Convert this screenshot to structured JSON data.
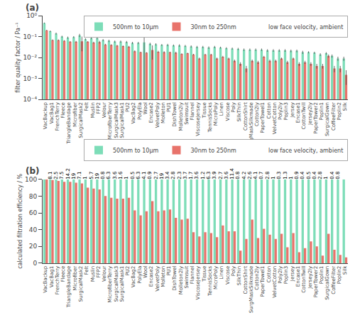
{
  "chart_data": [
    {
      "type": "bar",
      "title": "(a)",
      "categories": [
        "VacBackup",
        "VacBag1",
        "FrenchTerry",
        "Fleece",
        "TriangleBandage",
        "Microfiber",
        "SurgicalMask2",
        "Felt",
        "Muslin",
        "FFP2",
        "Velour",
        "MicrofiberTerry",
        "SurgicalMask3",
        "SurgicalMask1",
        "PU2",
        "VacBag2",
        "PolyEla",
        "Wool",
        "Encase2",
        "VelvetPoly",
        "Molleton",
        "PU1",
        "DishTowel",
        "Molleton2ly",
        "Swimsuit",
        "Flannel",
        "ViscoseJersey",
        "Tissue",
        "TennisSocks",
        "MicroPoly",
        "Linen",
        "Viscose",
        "Poly",
        "SilkThin",
        "CottonShirt",
        "SurgMaskSilkmade",
        "Cotton2ly",
        "PaperTowel1",
        "Cotton",
        "VelvetCotton",
        "Poly2ly",
        "Poplin3",
        "Jersey",
        "Encase1",
        "CottonTwill",
        "Jersey2ly",
        "PaperTower2",
        "Poplin1",
        "SurgicalGown",
        "CoffeeFilter",
        "Poplin2",
        "Silk"
      ],
      "ylabel": "filter quality factor / Pa⁻¹",
      "log": "y",
      "ylim": [
        0.0001,
        1
      ],
      "yticks": [
        {
          "value": 0.0001,
          "label": "10⁻⁴"
        },
        {
          "value": 0.001,
          "label": "10⁻³"
        },
        {
          "value": 0.01,
          "label": "10⁻²"
        },
        {
          "value": 0.1,
          "label": "10⁻¹"
        },
        {
          "value": 1,
          "label": "10⁰"
        }
      ],
      "grid": false,
      "legend": "upper right",
      "series": [
        {
          "name": "500nm to 10µm",
          "color": "#7DDDB8",
          "values": [
            0.44,
            0.18,
            0.14,
            0.1,
            0.09,
            0.095,
            0.115,
            0.075,
            0.085,
            0.085,
            0.068,
            0.063,
            0.058,
            0.058,
            0.055,
            0.05,
            0.05,
            0.053,
            0.045,
            0.043,
            0.04,
            0.04,
            0.038,
            0.038,
            0.036,
            0.034,
            0.032,
            0.032,
            0.03,
            0.032,
            0.03,
            0.028,
            0.027,
            0.026,
            0.024,
            0.024,
            0.024,
            0.024,
            0.022,
            0.022,
            0.022,
            0.022,
            0.021,
            0.021,
            0.018,
            0.018,
            0.017,
            0.014,
            0.016,
            0.012,
            0.009,
            0.009
          ],
          "errors": [
            0.025,
            0.015,
            0.015,
            0.01,
            0.01,
            0.01,
            0.02,
            0.008,
            0.01,
            0.01,
            0.008,
            0.008,
            0.007,
            0.007,
            0.007,
            0.006,
            0.006,
            0.08,
            0.006,
            0.005,
            0.004,
            0.005,
            0.004,
            0.005,
            0.004,
            0.004,
            0.004,
            0.004,
            0.004,
            0.004,
            0.003,
            0.003,
            0.003,
            0.003,
            0.003,
            0.003,
            0.003,
            0.003,
            0.003,
            0.003,
            0.003,
            0.003,
            0.003,
            0.003,
            0.003,
            0.002,
            0.002,
            0.002,
            0.002,
            0.002,
            0.002,
            0.002
          ]
        },
        {
          "name": "30nm to 250nm",
          "color": "#E8736B",
          "values": [
            0.2,
            0.068,
            0.068,
            0.063,
            0.057,
            0.057,
            0.06,
            0.057,
            0.052,
            0.055,
            0.042,
            0.04,
            0.037,
            0.035,
            0.033,
            0.02,
            0.018,
            0.017,
            0.023,
            0.019,
            0.018,
            0.018,
            0.017,
            0.015,
            0.016,
            0.014,
            0.009,
            0.014,
            0.014,
            0.009,
            0.011,
            0.009,
            0.007,
            0.005,
            0.003,
            0.007,
            0.006,
            0.011,
            0.007,
            0.007,
            0.009,
            0.006,
            0.009,
            0.005,
            0.006,
            0.005,
            0.004,
            0.004,
            0.012,
            0.003,
            0.003,
            0.0015
          ],
          "errors": [
            0.01,
            0.005,
            0.005,
            0.004,
            0.004,
            0.005,
            0.04,
            0.004,
            0.005,
            0.008,
            0.003,
            0.003,
            0.003,
            0.003,
            0.003,
            0.002,
            0.001,
            0.001,
            0.015,
            0.002,
            0.002,
            0.001,
            0.002,
            0.001,
            0.001,
            0.001,
            0.001,
            0.001,
            0.001,
            0.001,
            0.001,
            0.001,
            0.001,
            0.001,
            0.001,
            0.001,
            0.001,
            0.001,
            0.001,
            0.001,
            0.001,
            0.001,
            0.001,
            0.001,
            0.001,
            0.001,
            0.001,
            0.001,
            0.002,
            0.001,
            0.001,
            0.001
          ]
        },
        {
          "name": "low face velocity, ambient",
          "type": "text"
        }
      ]
    },
    {
      "type": "bar",
      "title": "(b)",
      "categories": [
        "VacBackup",
        "VacBag1",
        "FrenchTerry",
        "Fleece",
        "TriangleBandage",
        "Microfiber",
        "SurgicalMask2",
        "Felt",
        "Muslin",
        "FFP2",
        "Velour",
        "MicrofiberTerry",
        "SurgicalMask3",
        "SurgicalMask1",
        "PU2",
        "VacBag2",
        "PolyEla",
        "Wool",
        "Encase2",
        "VelvetPoly",
        "Molleton",
        "PU1",
        "DishTowel",
        "Molleton2ly",
        "Swimsuit",
        "Flannel",
        "ViscoseJersey",
        "Tissue",
        "TennisSocks",
        "MicroPoly",
        "Linen",
        "Viscose",
        "Poly",
        "SilkThin",
        "CottonShirt",
        "SurgMaskSilkmade",
        "Cotton2ly",
        "PaperTowel1",
        "Cotton",
        "VelvetCotton",
        "Poly2ly",
        "Poplin3",
        "Jersey",
        "Encase1",
        "CottonTwill",
        "Jersey2ly",
        "PaperTower2",
        "Poplin1",
        "SurgicalGown",
        "CoffeeFilter",
        "Poplin2",
        "Silk"
      ],
      "ylabel": "calculated filtration efficiency / %",
      "ylim": [
        0,
        100
      ],
      "yticks": [
        0,
        20,
        40,
        60,
        80,
        100
      ],
      "grid": false,
      "legend": "upper right",
      "series": [
        {
          "name": "500nm to 10µm",
          "color": "#7DDDB8",
          "values": [
            100,
            100,
            100,
            100,
            100,
            100,
            100,
            100,
            100,
            100,
            100,
            100,
            100,
            100,
            100,
            100,
            100,
            100,
            100,
            100,
            100,
            100,
            100,
            100,
            100,
            100,
            100,
            100,
            100,
            100,
            100,
            100,
            100,
            100,
            100,
            100,
            100,
            100,
            100,
            100,
            100,
            100,
            100,
            100,
            100,
            100,
            100,
            100,
            100,
            100,
            100,
            100
          ]
        },
        {
          "name": "30nm to 250nm",
          "color": "#E8736B",
          "values": [
            100,
            99,
            98,
            97,
            97,
            96,
            95,
            90,
            89,
            88,
            80,
            78,
            77,
            77,
            78,
            63,
            57,
            62,
            74,
            62,
            63,
            64,
            54,
            52,
            53,
            37,
            32,
            37,
            36,
            31,
            45,
            38,
            38,
            15,
            29,
            52,
            30,
            41,
            34,
            29,
            35,
            19,
            36,
            13,
            18,
            26,
            20,
            9,
            35,
            16,
            10,
            7
          ]
        },
        {
          "name": "low face velocity, ambient",
          "type": "text"
        }
      ],
      "annotations": [
        {
          "x": "VacBag1",
          "text": "8.1"
        },
        {
          "x": "FrenchTerry",
          "text": "2.5"
        },
        {
          "x": "Fleece",
          "text": "7.5"
        },
        {
          "x": "TriangleBandage",
          "text": "14.2"
        },
        {
          "x": "Microfiber",
          "text": "19"
        },
        {
          "x": "SurgicalMask2",
          "text": "7.1"
        },
        {
          "x": "Felt",
          "text": "1"
        },
        {
          "x": "Muslin",
          "text": "5.7"
        },
        {
          "x": "FFP2",
          "text": "19"
        },
        {
          "x": "Velour",
          "text": "0.8"
        },
        {
          "x": "MicrofiberTerry",
          "text": "6.3"
        },
        {
          "x": "SurgicalMask3",
          "text": "3.6"
        },
        {
          "x": "SurgicalMask1",
          "text": "1.6"
        },
        {
          "x": "PU2",
          "text": "1"
        },
        {
          "x": "VacBag2",
          "text": "0.5"
        },
        {
          "x": "PolyEla",
          "text": "6.3"
        },
        {
          "x": "Wool",
          "text": "4.1"
        },
        {
          "x": "Encase2",
          "text": "0.9"
        },
        {
          "x": "VelvetPoly",
          "text": "2.7"
        },
        {
          "x": "Molleton",
          "text": "19"
        },
        {
          "x": "PU1",
          "text": "3.4"
        },
        {
          "x": "DishTowel",
          "text": "2.8"
        },
        {
          "x": "Molleton2ly",
          "text": "2.3"
        },
        {
          "x": "Swimsuit",
          "text": "3.7"
        },
        {
          "x": "Flannel",
          "text": "1.7"
        },
        {
          "x": "ViscoseJersey",
          "text": "3.6"
        },
        {
          "x": "Tissue",
          "text": "1.2"
        },
        {
          "x": "TennisSocks",
          "text": "6.3"
        },
        {
          "x": "MicroPoly",
          "text": "3.9"
        },
        {
          "x": "Linen",
          "text": "2.7"
        },
        {
          "x": "Viscose",
          "text": "3.6"
        },
        {
          "x": "Poly",
          "text": "11.4"
        },
        {
          "x": "SilkThin",
          "text": "0.8"
        },
        {
          "x": "CottonShirt",
          "text": "4.2"
        },
        {
          "x": "SurgMaskSilkmade",
          "text": "2.6"
        },
        {
          "x": "Cotton2ly",
          "text": "4.1"
        },
        {
          "x": "PaperTowel1",
          "text": "0.7"
        },
        {
          "x": "Cotton",
          "text": "2.8"
        },
        {
          "x": "VelvetCotton",
          "text": "1"
        },
        {
          "x": "Poly2ly",
          "text": "0.3"
        },
        {
          "x": "Poplin3",
          "text": "1.3"
        },
        {
          "x": "Jersey",
          "text": "1"
        },
        {
          "x": "Encase1",
          "text": "0.9"
        },
        {
          "x": "CottonTwill",
          "text": "0.4"
        },
        {
          "x": "Jersey2ly",
          "text": "0.5"
        },
        {
          "x": "PaperTower2",
          "text": "0.4"
        },
        {
          "x": "Poplin1",
          "text": "2.8"
        },
        {
          "x": "SurgicalGown",
          "text": "1"
        },
        {
          "x": "CoffeeFilter",
          "text": "0.4"
        },
        {
          "x": "Poplin2",
          "text": "0.8"
        }
      ]
    }
  ]
}
